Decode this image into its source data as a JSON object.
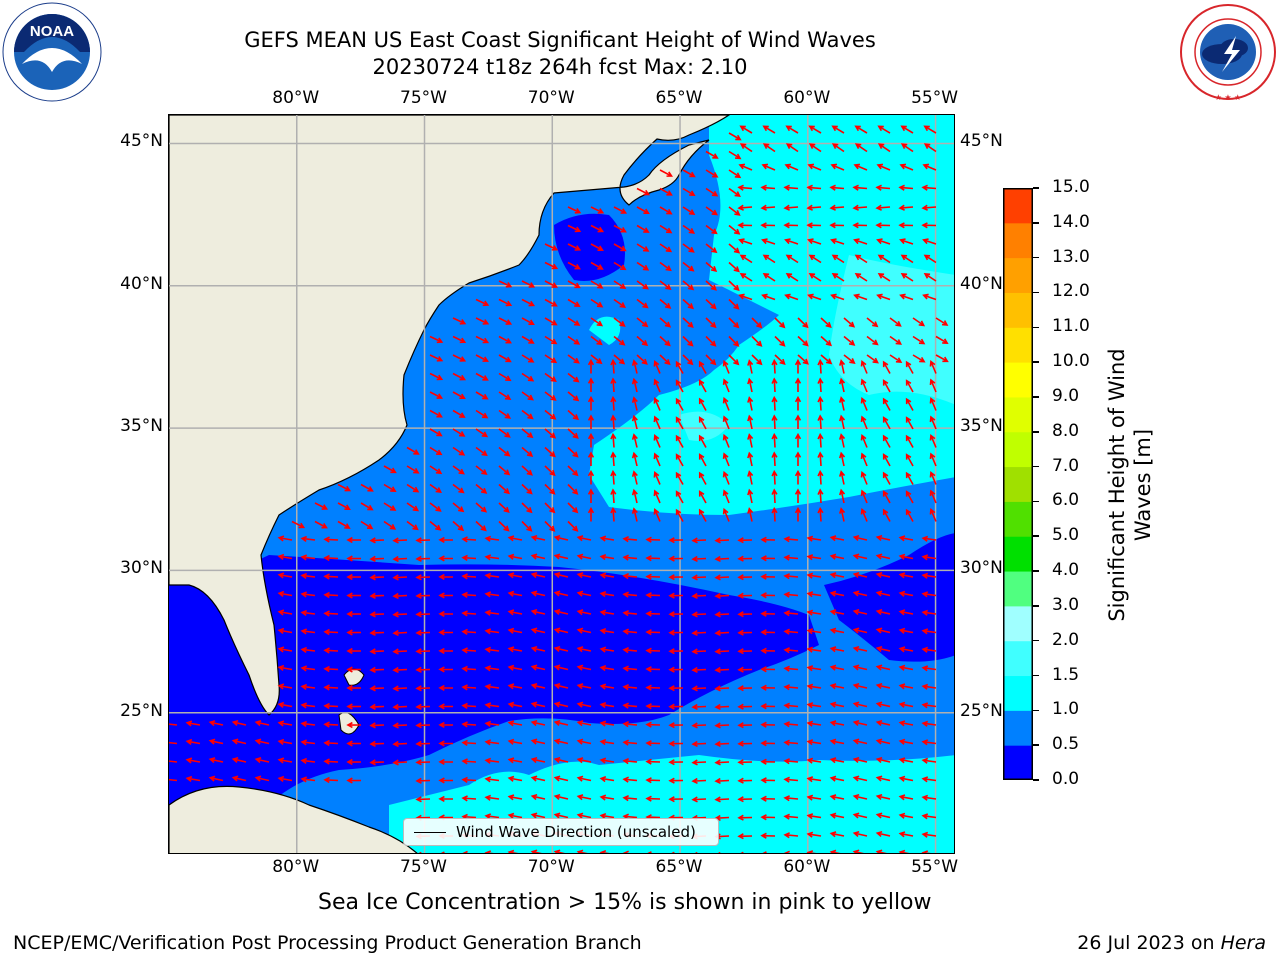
{
  "header": {
    "title_line1": "GEFS MEAN US East Coast Significant Height of Wind Waves",
    "title_line2": "20230724 t18z 264h fcst   Max: 2.10"
  },
  "logos": {
    "left": {
      "name": "noaa-logo",
      "text": "NOAA",
      "ring_text": "NATIONAL OCEANIC AND ATMOSPHERIC ADMINISTRATION · U.S. DEPARTMENT OF COMMERCE"
    },
    "right": {
      "name": "nws-logo",
      "ring_text": "NATIONAL WEATHER SERVICE"
    }
  },
  "map": {
    "lon_labels": [
      "80°W",
      "75°W",
      "70°W",
      "65°W",
      "60°W",
      "55°W"
    ],
    "lat_labels": [
      "45°N",
      "40°N",
      "35°N",
      "30°N",
      "25°N"
    ],
    "lon_range": [
      -85,
      -54.2
    ],
    "lat_range": [
      20,
      46
    ],
    "land_color": "#eeedde",
    "grid": true,
    "arrow_color": "#ff0000"
  },
  "legend": {
    "label": "Wind Wave Direction (unscaled)",
    "placement": "bottom-center"
  },
  "colorbar": {
    "title_line1": "Significant Height of Wind",
    "title_line2": "Waves [m]",
    "ticks": [
      "0.0",
      "0.5",
      "1.0",
      "1.5",
      "2.0",
      "3.0",
      "4.0",
      "5.0",
      "6.0",
      "7.0",
      "8.0",
      "9.0",
      "10.0",
      "11.0",
      "12.0",
      "13.0",
      "14.0",
      "15.0"
    ],
    "colors": [
      "#0000ff",
      "#0080ff",
      "#00ffff",
      "#40ffff",
      "#a0ffff",
      "#50ff80",
      "#00e000",
      "#50e000",
      "#a0e000",
      "#c0ff00",
      "#e0ff00",
      "#ffff00",
      "#ffe000",
      "#ffc000",
      "#ffa000",
      "#ff8000",
      "#ff4000",
      "#ff0000"
    ]
  },
  "notes": {
    "sea_ice": "Sea Ice Concentration > 15% is shown in pink to yellow"
  },
  "footer": {
    "left": "NCEP/EMC/Verification Post Processing Product Generation Branch",
    "right_prefix": "26 Jul 2023 on ",
    "right_machine": "Hera"
  }
}
